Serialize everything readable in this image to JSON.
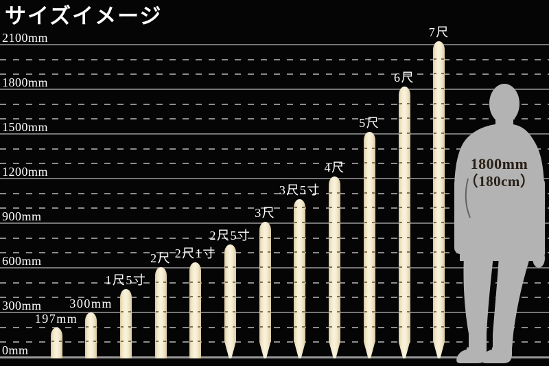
{
  "title": "サイズイメージ",
  "colors": {
    "background": "#050505",
    "grid_solid": "#767676",
    "grid_dashed": "#8d8d8d",
    "baseline": "#9a9a9a",
    "axis_text": "#ffffff",
    "stake_edge": "#d8c9a0",
    "stake_mid": "#f2e8cb",
    "stake_light": "#faf3dd",
    "stake_notch": "#5a4a2c",
    "figure_fill": "#b3b3b3",
    "figure_text": "#292017"
  },
  "chart_data": {
    "type": "bar",
    "title": "サイズイメージ",
    "unit": "mm",
    "ylim": [
      0,
      2100
    ],
    "solid_grid_every_mm": 300,
    "dashed_grid_every_mm": 100,
    "legend_position": "none",
    "yticks": [
      {
        "label": "0mm",
        "mm": 0
      },
      {
        "label": "300mm",
        "mm": 300
      },
      {
        "label": "600mm",
        "mm": 600
      },
      {
        "label": "900mm",
        "mm": 900
      },
      {
        "label": "1200mm",
        "mm": 1200
      },
      {
        "label": "1500mm",
        "mm": 1500
      },
      {
        "label": "1800mm",
        "mm": 1800
      },
      {
        "label": "2100mm",
        "mm": 2100
      }
    ],
    "bars": [
      {
        "label": "197mm",
        "value_mm": 197,
        "pointed_tip": false
      },
      {
        "label": "300mm",
        "value_mm": 300,
        "pointed_tip": false
      },
      {
        "label": "1尺5寸",
        "value_mm": 455,
        "pointed_tip": false
      },
      {
        "label": "2尺",
        "value_mm": 606,
        "pointed_tip": false
      },
      {
        "label": "2尺1寸",
        "value_mm": 636,
        "pointed_tip": false
      },
      {
        "label": "2尺5寸",
        "value_mm": 757,
        "pointed_tip": true
      },
      {
        "label": "3尺",
        "value_mm": 909,
        "pointed_tip": true
      },
      {
        "label": "3尺5寸",
        "value_mm": 1060,
        "pointed_tip": true
      },
      {
        "label": "4尺",
        "value_mm": 1212,
        "pointed_tip": true
      },
      {
        "label": "5尺",
        "value_mm": 1515,
        "pointed_tip": true
      },
      {
        "label": "6尺",
        "value_mm": 1818,
        "pointed_tip": true
      },
      {
        "label": "7尺",
        "value_mm": 2121,
        "pointed_tip": true
      }
    ],
    "figure": {
      "description": "human silhouette for scale",
      "height_mm": 1800,
      "label_line1": "1800mm",
      "label_line2": "（180cm）"
    }
  }
}
